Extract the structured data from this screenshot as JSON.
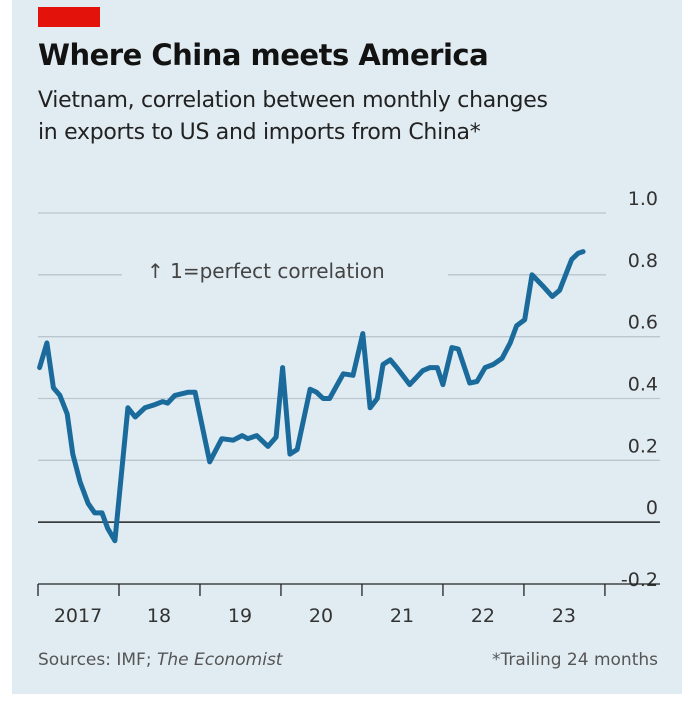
{
  "header": {
    "title": "Where China meets America",
    "subtitle_line1": "Vietnam, correlation between monthly changes",
    "subtitle_line2": "in exports to US and imports from China*"
  },
  "footer": {
    "sources_prefix": "Sources: IMF; ",
    "sources_italic": "The Economist",
    "note": "*Trailing 24 months"
  },
  "colors": {
    "line": "#1a6b9c",
    "background": "#e1ecf2",
    "brand_red": "#e3120b",
    "grid": "#b9c6cd",
    "zero_line": "#222222"
  },
  "chart_data": {
    "type": "line",
    "title": "Where China meets America",
    "annotation": "↑ 1=perfect correlation",
    "xlim": [
      2017,
      2024.68
    ],
    "ylim": [
      -0.2,
      1.0
    ],
    "y_ticks": [
      1.0,
      0.8,
      0.6,
      0.4,
      0.2,
      0,
      -0.2
    ],
    "y_tick_labels": [
      "1.0",
      "0.8",
      "0.6",
      "0.4",
      "0.2",
      "0",
      "-0.2"
    ],
    "x_ticks": [
      2017,
      2018,
      2019,
      2020,
      2021,
      2022,
      2023,
      2024
    ],
    "x_tick_labels": [
      "2017",
      "18",
      "19",
      "20",
      "21",
      "22",
      "23"
    ],
    "grid": true,
    "series": [
      {
        "x": [
          2017.02,
          2017.11,
          2017.19,
          2017.27,
          2017.36,
          2017.43,
          2017.52,
          2017.62,
          2017.7,
          2017.79,
          2017.86,
          2017.95,
          2018.11,
          2018.2,
          2018.32,
          2018.44,
          2018.54,
          2018.6,
          2018.69,
          2018.85,
          2018.94,
          2019.12,
          2019.27,
          2019.41,
          2019.52,
          2019.59,
          2019.7,
          2019.84,
          2019.94,
          2020.02,
          2020.11,
          2020.2,
          2020.36,
          2020.44,
          2020.52,
          2020.6,
          2020.77,
          2020.89,
          2021.01,
          2021.1,
          2021.19,
          2021.26,
          2021.35,
          2021.43,
          2021.59,
          2021.75,
          2021.84,
          2021.93,
          2022.0,
          2022.11,
          2022.19,
          2022.33,
          2022.42,
          2022.52,
          2022.62,
          2022.73,
          2022.83,
          2022.91,
          2023.01,
          2023.1,
          2023.23,
          2023.35,
          2023.44,
          2023.59,
          2023.67,
          2023.73
        ],
        "values": [
          0.5,
          0.58,
          0.435,
          0.41,
          0.35,
          0.22,
          0.13,
          0.06,
          0.03,
          0.03,
          -0.02,
          -0.06,
          0.37,
          0.34,
          0.37,
          0.38,
          0.39,
          0.385,
          0.41,
          0.42,
          0.42,
          0.195,
          0.27,
          0.265,
          0.28,
          0.27,
          0.28,
          0.245,
          0.275,
          0.5,
          0.22,
          0.235,
          0.43,
          0.42,
          0.4,
          0.4,
          0.48,
          0.475,
          0.61,
          0.37,
          0.4,
          0.51,
          0.525,
          0.5,
          0.445,
          0.49,
          0.5,
          0.5,
          0.445,
          0.565,
          0.56,
          0.45,
          0.455,
          0.5,
          0.51,
          0.53,
          0.58,
          0.635,
          0.655,
          0.8,
          0.765,
          0.73,
          0.75,
          0.85,
          0.87,
          0.875
        ]
      }
    ]
  }
}
